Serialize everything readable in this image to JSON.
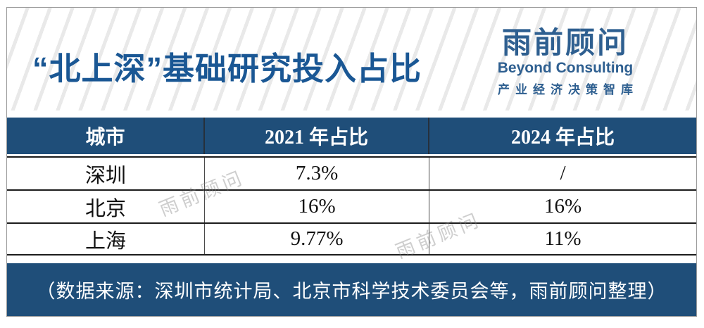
{
  "title": "“北上深”基础研究投入占比",
  "logo": {
    "name_cn": "雨前顾问",
    "name_en": "Beyond Consulting",
    "tagline": "产业经济决策智库"
  },
  "table": {
    "columns": [
      "城市",
      "2021 年占比",
      "2024 年占比"
    ],
    "rows": [
      {
        "city": "深圳",
        "y2021": "7.3%",
        "y2024": "/"
      },
      {
        "city": "北京",
        "y2021": "16%",
        "y2024": "16%"
      },
      {
        "city": "上海",
        "y2021": "9.77%",
        "y2024": "11%"
      }
    ]
  },
  "footer": {
    "source_note": "（数据来源：深圳市统计局、北京市科学技术委员会等，雨前顾问整理）"
  },
  "watermarks": [
    "雨前顾问",
    "雨前顾问"
  ],
  "colors": {
    "navy": "#1F4E79",
    "title_blue": "#1A5794",
    "logo_blue": "#2E5F90",
    "stripe_gray": "#E9E9E9"
  },
  "chart_data": {
    "type": "table",
    "title": "“北上深”基础研究投入占比",
    "columns": [
      "城市",
      "2021 年占比",
      "2024 年占比"
    ],
    "rows": [
      [
        "深圳",
        "7.3%",
        "/"
      ],
      [
        "北京",
        "16%",
        "16%"
      ],
      [
        "上海",
        "9.77%",
        "11%"
      ]
    ],
    "units": "percent of R&D spending",
    "missing_value_marker": "/",
    "source_note": "（数据来源：深圳市统计局、北京市科学技术委员会等，雨前顾问整理）"
  }
}
